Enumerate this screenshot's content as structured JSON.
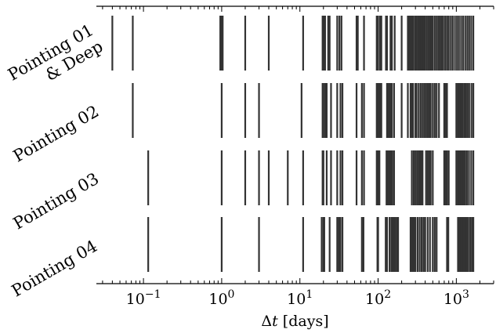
{
  "chart_data": {
    "type": "event-raster",
    "x_scale": "log",
    "xlim": [
      0.025,
      3000
    ],
    "xlabel": "Δt [days]",
    "x_ticks": [
      {
        "value": 0.1,
        "base": "10",
        "exp": "−1"
      },
      {
        "value": 1,
        "base": "10",
        "exp": "0"
      },
      {
        "value": 10,
        "base": "10",
        "exp": "1"
      },
      {
        "value": 100,
        "base": "10",
        "exp": "2"
      },
      {
        "value": 1000,
        "base": "10",
        "exp": "3"
      }
    ],
    "grid": false,
    "legend": "none",
    "mark_color": "#333333",
    "rows": [
      {
        "label_lines": [
          "Pointing 01",
          "& Deep"
        ],
        "events": [
          0.04,
          0.073,
          0.96,
          0.97,
          0.98,
          0.99,
          1.0,
          1.01,
          1.02,
          1.03,
          2.0,
          4.0,
          11.0,
          19.5,
          20.0,
          20.5,
          21.0,
          23.0,
          24.0,
          30.0,
          32.0,
          34.0,
          53.0,
          55.0,
          66.0,
          96.0,
          100.0,
          106.0,
          110.0,
          126.0,
          130.0,
          144.0,
          150.0,
          163.0,
          200.0,
          240.0,
          250.0,
          260.0,
          270.0,
          280.0,
          295.0,
          310.0,
          325.0,
          340.0,
          355.0,
          370.0,
          385.0,
          400.0,
          420.0,
          440.0,
          460.0,
          480.0,
          500.0,
          530.0,
          560.0,
          590.0,
          620.0,
          650.0,
          680.0,
          720.0,
          760.0,
          800.0,
          850.0,
          900.0,
          960.0,
          1020.0,
          1080.0,
          1150.0,
          1220.0,
          1300.0,
          1380.0,
          1460.0,
          1550.0,
          1650.0
        ]
      },
      {
        "label_lines": [
          "Pointing 02"
        ],
        "events": [
          0.073,
          1.0,
          2.0,
          3.0,
          10.5,
          19.5,
          20.0,
          21.0,
          22.0,
          25.0,
          30.0,
          33.0,
          35.0,
          53.0,
          62.0,
          66.0,
          96.0,
          100.0,
          104.0,
          107.0,
          110.0,
          130.0,
          134.0,
          140.0,
          145.0,
          150.0,
          160.0,
          200.0,
          240.0,
          260.0,
          270.0,
          280.0,
          300.0,
          310.0,
          330.0,
          350.0,
          370.0,
          390.0,
          410.0,
          430.0,
          450.0,
          470.0,
          500.0,
          530.0,
          560.0,
          600.0,
          700.0,
          730.0,
          760.0,
          1000.0,
          1050.0,
          1100.0,
          1150.0,
          1200.0,
          1260.0,
          1320.0,
          1390.0,
          1460.0,
          1560.0,
          1650.0
        ]
      },
      {
        "label_lines": [
          "Pointing 03"
        ],
        "events": [
          0.115,
          1.0,
          2.0,
          3.0,
          4.0,
          7.0,
          11.0,
          19.5,
          20.0,
          22.0,
          25.0,
          30.0,
          33.0,
          35.0,
          53.0,
          62.0,
          66.0,
          96.0,
          100.0,
          104.0,
          128.0,
          132.0,
          136.0,
          140.0,
          144.0,
          148.0,
          152.0,
          160.0,
          270.0,
          285.0,
          300.0,
          315.0,
          330.0,
          340.0,
          355.0,
          370.0,
          410.0,
          430.0,
          450.0,
          470.0,
          500.0,
          700.0,
          730.0,
          760.0,
          800.0,
          1000.0,
          1050.0,
          1100.0,
          1150.0,
          1200.0,
          1250.0,
          1300.0,
          1370.0,
          1450.0,
          1550.0,
          1650.0
        ]
      },
      {
        "label_lines": [
          "Pointing 04"
        ],
        "events": [
          0.115,
          1.0,
          3.0,
          11.0,
          19.0,
          20.0,
          20.5,
          24.0,
          30.0,
          31.5,
          33.0,
          35.0,
          62.0,
          65.0,
          98.0,
          100.0,
          125.0,
          130.0,
          140.0,
          148.0,
          155.0,
          160.0,
          167.0,
          175.0,
          180.0,
          260.0,
          270.0,
          280.0,
          290.0,
          300.0,
          320.0,
          340.0,
          360.0,
          380.0,
          400.0,
          430.0,
          460.0,
          500.0,
          530.0,
          560.0,
          760.0,
          790.0,
          1050.0,
          1100.0,
          1150.0,
          1200.0,
          1250.0,
          1300.0,
          1350.0,
          1420.0,
          1500.0,
          1580.0,
          1650.0
        ]
      }
    ]
  }
}
